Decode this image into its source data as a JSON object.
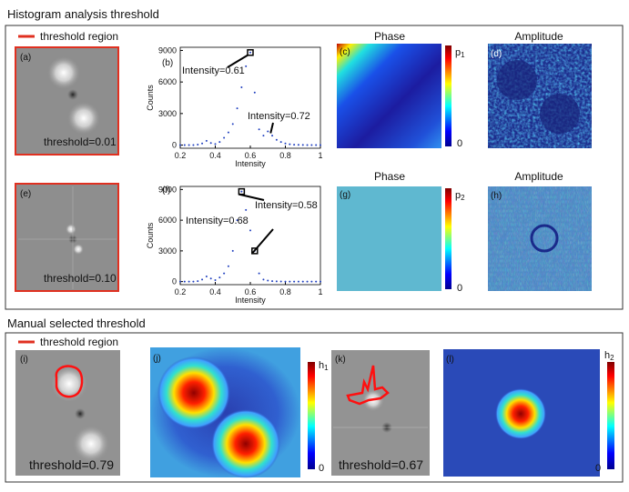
{
  "sections": [
    {
      "title": "Histogram analysis threshold",
      "legend": "threshold region"
    },
    {
      "title": "Manual selected threshold",
      "legend": "threshold region"
    }
  ],
  "panels": {
    "a": {
      "label": "(a)",
      "text": "threshold=0.01"
    },
    "b": {
      "label": "(b)"
    },
    "c": {
      "label": "(c)",
      "title": "Phase",
      "cbar_symbol": "p",
      "cbar_sub": "1",
      "cbar_zero": "0"
    },
    "d": {
      "label": "(d)",
      "title": "Amplitude"
    },
    "e": {
      "label": "(e)",
      "text": "threshold=0.10"
    },
    "f": {
      "label": "(f)"
    },
    "g": {
      "label": "(g)",
      "title": "Phase",
      "cbar_symbol": "p",
      "cbar_sub": "2",
      "cbar_zero": "0"
    },
    "h": {
      "label": "(h)",
      "title": "Amplitude"
    },
    "i": {
      "label": "(i)",
      "text": "threshold=0.79"
    },
    "j": {
      "label": "(j)",
      "cbar_symbol": "h",
      "cbar_sub": "1",
      "cbar_zero": "0"
    },
    "k": {
      "label": "(k)",
      "text": "threshold=0.67"
    },
    "l": {
      "label": "(l)",
      "cbar_symbol": "h",
      "cbar_sub": "2",
      "cbar_zero": "0"
    }
  },
  "chart_data": [
    {
      "type": "line",
      "xlabel": "Intensity",
      "ylabel": "Counts",
      "color": "#1f3fbf",
      "x": [
        0.2,
        0.225,
        0.25,
        0.275,
        0.3,
        0.325,
        0.35,
        0.375,
        0.4,
        0.425,
        0.45,
        0.475,
        0.5,
        0.525,
        0.55,
        0.575,
        0.6,
        0.625,
        0.65,
        0.675,
        0.7,
        0.725,
        0.75,
        0.775,
        0.8,
        0.825,
        0.85,
        0.875,
        0.9,
        0.925,
        0.95,
        0.975,
        1.0
      ],
      "values": [
        0,
        0,
        0,
        0,
        50,
        150,
        400,
        200,
        100,
        300,
        700,
        1200,
        2000,
        3500,
        5500,
        7500,
        8800,
        5000,
        1500,
        900,
        1300,
        900,
        500,
        300,
        150,
        80,
        40,
        20,
        10,
        0,
        0,
        0,
        0
      ],
      "markers": [
        {
          "x": 0.6,
          "y": 8800
        }
      ],
      "annotations": [
        "Intensity=0.61",
        "Intensity=0.72"
      ],
      "xlim": [
        0.2,
        1
      ],
      "ylim": [
        -300,
        9300
      ],
      "xticks": [
        0.2,
        0.4,
        0.6,
        0.8,
        1
      ],
      "yticks": [
        0,
        3000,
        6000,
        9000
      ]
    },
    {
      "type": "line",
      "xlabel": "Intensity",
      "ylabel": "Counts",
      "color": "#1f3fbf",
      "x": [
        0.2,
        0.225,
        0.25,
        0.275,
        0.3,
        0.325,
        0.35,
        0.375,
        0.4,
        0.425,
        0.45,
        0.475,
        0.5,
        0.525,
        0.55,
        0.575,
        0.6,
        0.625,
        0.65,
        0.675,
        0.7,
        0.725,
        0.75,
        0.775,
        0.8,
        0.825,
        0.85,
        0.875,
        0.9,
        0.925,
        0.95,
        0.975,
        1.0
      ],
      "values": [
        0,
        0,
        0,
        0,
        50,
        200,
        500,
        300,
        150,
        400,
        800,
        1500,
        3000,
        6000,
        8800,
        7000,
        5000,
        3000,
        800,
        200,
        100,
        50,
        20,
        10,
        0,
        0,
        0,
        0,
        0,
        0,
        0,
        0,
        0
      ],
      "markers": [
        {
          "x": 0.55,
          "y": 8800
        },
        {
          "x": 0.625,
          "y": 3000
        }
      ],
      "annotations": [
        "Intensity=0.58",
        "Intensity=0.68"
      ],
      "xlim": [
        0.2,
        1
      ],
      "ylim": [
        -300,
        9300
      ],
      "xticks": [
        0.2,
        0.4,
        0.6,
        0.8,
        1
      ],
      "yticks": [
        0,
        3000,
        6000,
        9000
      ]
    }
  ]
}
